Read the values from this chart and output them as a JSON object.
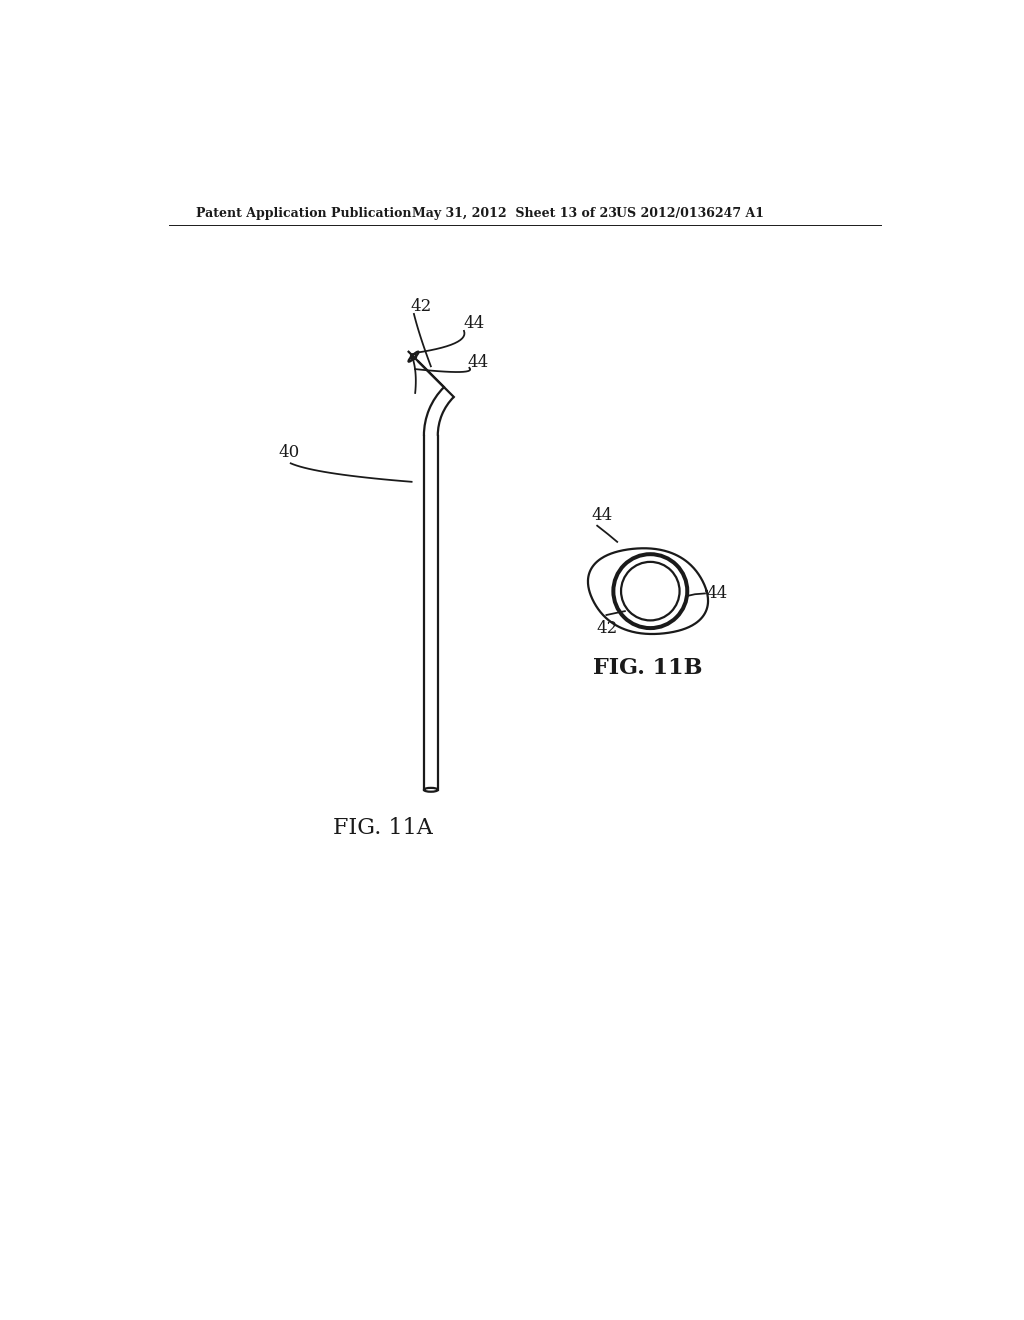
{
  "header_left": "Patent Application Publication",
  "header_mid": "May 31, 2012  Sheet 13 of 23",
  "header_right": "US 2012/0136247 A1",
  "fig_a_label": "FIG. 11A",
  "fig_b_label": "FIG. 11B",
  "label_40": "40",
  "label_42": "42",
  "label_44_top": "44",
  "label_44_bottom": "44",
  "label_42b": "42",
  "label_44b_top": "44",
  "label_44b_right": "44",
  "bg_color": "#ffffff",
  "line_color": "#1a1a1a",
  "line_width": 1.6
}
